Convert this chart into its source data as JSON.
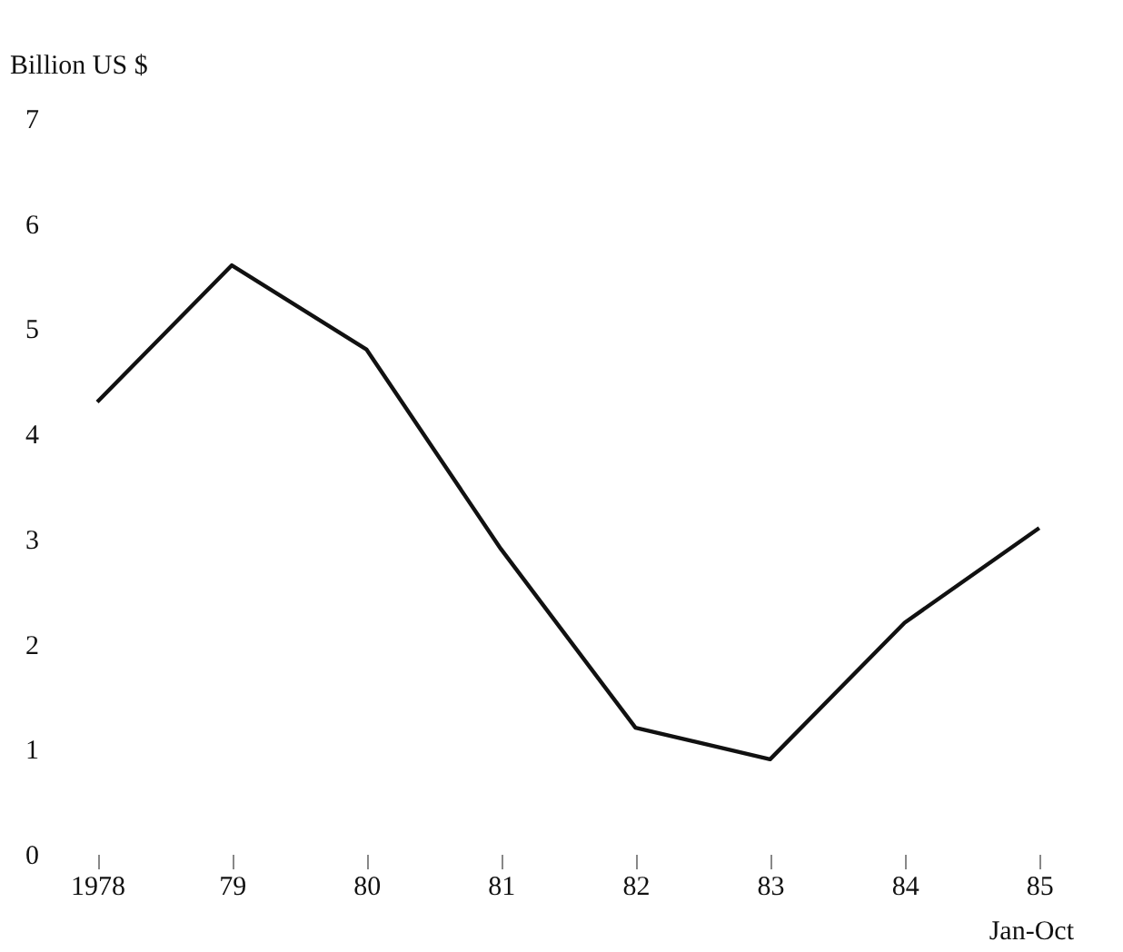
{
  "chart_data": {
    "type": "line",
    "ylabel": "Billion US $",
    "categories": [
      "1978",
      "79",
      "80",
      "81",
      "82",
      "83",
      "84",
      "85"
    ],
    "series": [
      {
        "color": "#111111",
        "values": [
          4.3,
          5.6,
          4.8,
          2.9,
          1.2,
          0.9,
          2.2,
          3.1
        ]
      }
    ],
    "ylim": [
      0,
      7
    ],
    "yticks": [
      0,
      1,
      2,
      3,
      4,
      5,
      6,
      7
    ],
    "annotations": [
      "Jan-Oct"
    ],
    "grid": false,
    "marker": "none",
    "line_style": "solid"
  }
}
